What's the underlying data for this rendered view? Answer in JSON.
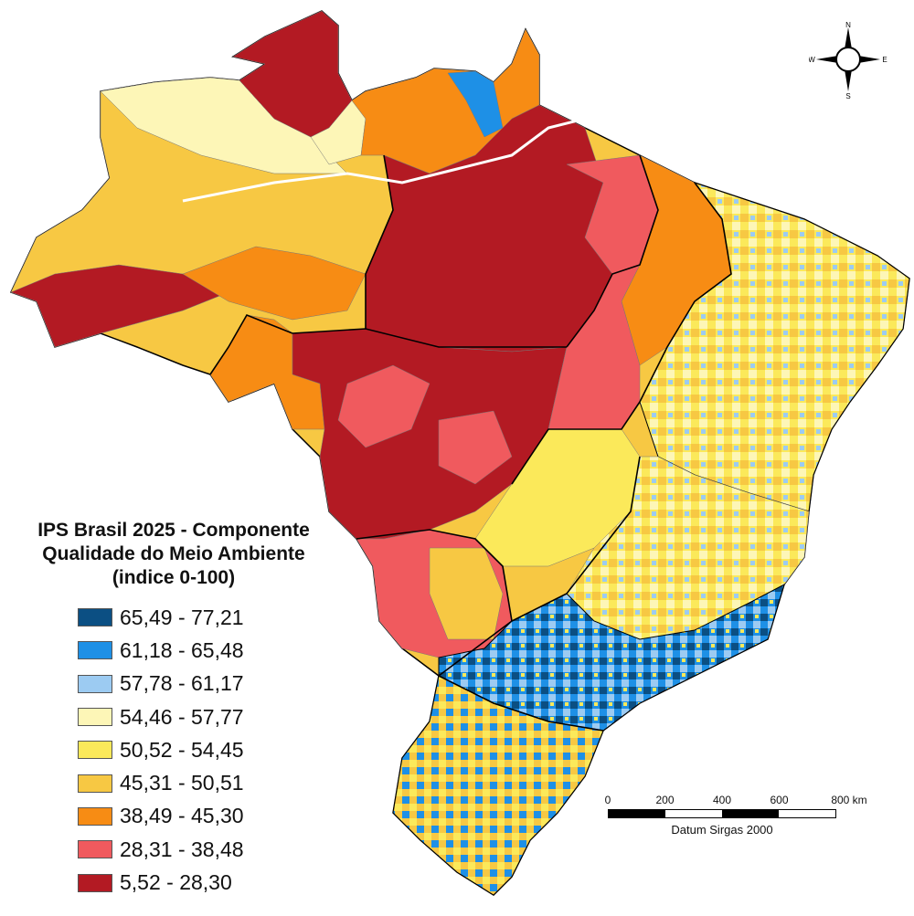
{
  "legend": {
    "title_lines": [
      "IPS Brasil 2025 - Componente",
      "Qualidade do Meio Ambiente",
      "(indice 0-100)"
    ],
    "classes": [
      {
        "label": "65,49 - 77,21",
        "color": "#0b4f83"
      },
      {
        "label": "61,18 - 65,48",
        "color": "#1e90e6"
      },
      {
        "label": "57,78 - 61,17",
        "color": "#9ccbf2"
      },
      {
        "label": "54,46 - 57,77",
        "color": "#fdf6b7"
      },
      {
        "label": "50,52 - 54,45",
        "color": "#fbe95a"
      },
      {
        "label": "45,31 - 50,51",
        "color": "#f7c843"
      },
      {
        "label": "38,49 - 45,30",
        "color": "#f78c14"
      },
      {
        "label": "28,31 - 38,48",
        "color": "#f05a5e"
      },
      {
        "label": "5,52 - 28,30",
        "color": "#b31a23"
      }
    ]
  },
  "compass": {
    "n": "N",
    "s": "S",
    "e": "E",
    "w": "W"
  },
  "scale": {
    "ticks": [
      "0",
      "200",
      "400",
      "600",
      "800 km"
    ],
    "caption": "Datum Sirgas 2000"
  }
}
